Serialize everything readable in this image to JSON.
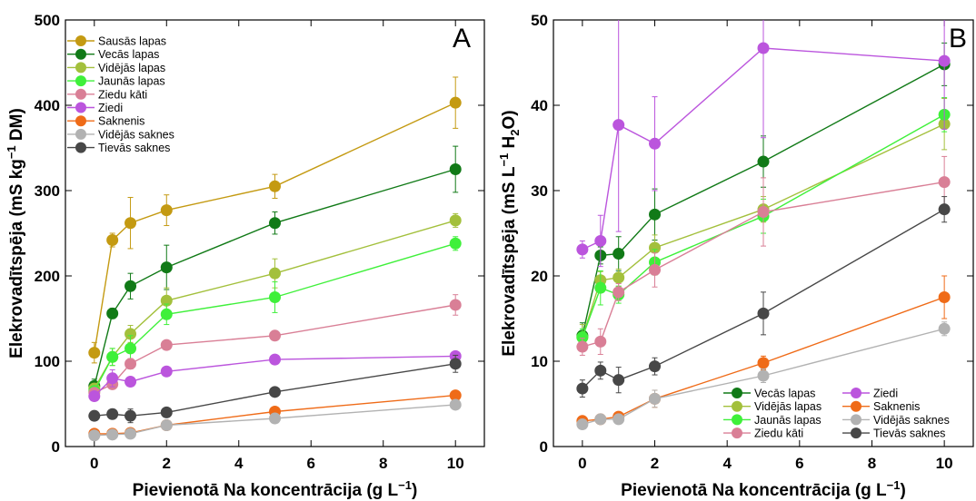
{
  "chart_data": [
    {
      "panel": "A",
      "type": "line",
      "xlabel": "Pievienotā Na koncentrācija (g L",
      "xlabel_sup": "−1",
      "xlabel_end": ")",
      "ylabel_pre": "Elekrovadītspēja (mS kg",
      "ylabel_sup": "−1",
      "ylabel_post": " DM)",
      "xlim": [
        -0.8,
        10.8
      ],
      "ylim": [
        0,
        500
      ],
      "xticks": [
        0,
        2,
        4,
        6,
        8,
        10
      ],
      "yticks": [
        0,
        100,
        200,
        300,
        400,
        500
      ],
      "legend_placement": "top-left",
      "series": [
        {
          "name": "Sausās lapas",
          "color": "#c49a12",
          "x": [
            0,
            0.5,
            1,
            2,
            5,
            10
          ],
          "y": [
            110,
            242,
            262,
            277,
            305,
            403
          ],
          "err": [
            12,
            8,
            30,
            18,
            14,
            30
          ]
        },
        {
          "name": "Vecās lapas",
          "color": "#117a17",
          "x": [
            0,
            0.5,
            1,
            2,
            5,
            10
          ],
          "y": [
            71,
            156,
            188,
            210,
            262,
            325
          ],
          "err": [
            8,
            6,
            15,
            26,
            13,
            27
          ]
        },
        {
          "name": "Vidējās lapas",
          "color": "#a3c03c",
          "x": [
            0,
            0.5,
            1,
            2,
            5,
            10
          ],
          "y": [
            68,
            105,
            132,
            171,
            203,
            265
          ],
          "err": [
            6,
            10,
            10,
            15,
            17,
            8
          ]
        },
        {
          "name": "Jaunās lapas",
          "color": "#3ff03a",
          "x": [
            0,
            0.5,
            1,
            2,
            5,
            10
          ],
          "y": [
            65,
            105,
            115,
            155,
            175,
            238
          ],
          "err": [
            6,
            10,
            15,
            12,
            18,
            8
          ]
        },
        {
          "name": "Ziedu kāti",
          "color": "#d97f96",
          "x": [
            0,
            0.5,
            1,
            2,
            5,
            10
          ],
          "y": [
            63,
            73,
            97,
            119,
            130,
            166
          ],
          "err": [
            5,
            5,
            6,
            5,
            5,
            12
          ]
        },
        {
          "name": "Ziedi",
          "color": "#bb55dd",
          "x": [
            0,
            0.5,
            1,
            2,
            5,
            10
          ],
          "y": [
            59,
            80,
            76,
            88,
            102,
            106
          ],
          "err": [
            5,
            10,
            5,
            5,
            5,
            5
          ]
        },
        {
          "name": "Saknenis",
          "color": "#ef6b18",
          "x": [
            0,
            0.5,
            1,
            2,
            5,
            10
          ],
          "y": [
            15,
            15,
            16,
            25,
            41,
            60
          ],
          "err": [
            2,
            2,
            2,
            3,
            3,
            3
          ]
        },
        {
          "name": "Vidējās saknes",
          "color": "#b2b2b2",
          "x": [
            0,
            0.5,
            1,
            2,
            5,
            10
          ],
          "y": [
            13,
            14,
            15,
            25,
            33,
            49
          ],
          "err": [
            2,
            2,
            2,
            3,
            3,
            4
          ]
        },
        {
          "name": "Tievās saknes",
          "color": "#474747",
          "x": [
            0,
            0.5,
            1,
            2,
            5,
            10
          ],
          "y": [
            36,
            38,
            36,
            40,
            64,
            97
          ],
          "err": [
            5,
            5,
            8,
            5,
            5,
            10
          ]
        }
      ]
    },
    {
      "panel": "B",
      "type": "line",
      "xlabel": "Pievienotā Na koncentrācija (g L",
      "xlabel_sup": "−1",
      "xlabel_end": ")",
      "ylabel_pre": "Elekrovadītspēja (mS L",
      "ylabel_sup": "−1",
      "ylabel_post": " H",
      "ylabel_sub": "2",
      "ylabel_end": "O)",
      "xlim": [
        -0.8,
        10.8
      ],
      "ylim": [
        0,
        50
      ],
      "xticks": [
        0,
        2,
        4,
        6,
        8,
        10
      ],
      "yticks": [
        0,
        10,
        20,
        30,
        40,
        50
      ],
      "legend_placement": "bottom-right",
      "series": [
        {
          "name": "Vecās lapas",
          "color": "#117a17",
          "x": [
            0,
            0.5,
            1,
            2,
            5,
            10
          ],
          "y": [
            13.0,
            22.4,
            22.6,
            27.2,
            33.4,
            44.8
          ],
          "err": [
            1.5,
            1.0,
            2.0,
            3.0,
            3.0,
            2.5
          ]
        },
        {
          "name": "Vidējās lapas",
          "color": "#a3c03c",
          "x": [
            0,
            0.5,
            1,
            2,
            5,
            10
          ],
          "y": [
            12.8,
            19.5,
            19.8,
            23.3,
            27.8,
            37.8
          ],
          "err": [
            1.5,
            1.0,
            1.0,
            1.5,
            1.5,
            3.0
          ]
        },
        {
          "name": "Jaunās lapas",
          "color": "#3ff03a",
          "x": [
            0,
            0.5,
            1,
            2,
            5,
            10
          ],
          "y": [
            12.8,
            18.6,
            17.8,
            21.6,
            27.0,
            38.9
          ],
          "err": [
            1.0,
            2.0,
            1.0,
            1.5,
            2.0,
            2.0
          ]
        },
        {
          "name": "Ziedu kāti",
          "color": "#d97f96",
          "x": [
            0,
            0.5,
            1,
            2,
            5,
            10
          ],
          "y": [
            11.7,
            12.3,
            18.1,
            20.7,
            27.5,
            31.0
          ],
          "err": [
            1.0,
            1.5,
            1.0,
            2.0,
            4.0,
            3.0
          ]
        },
        {
          "name": "Ziedi",
          "color": "#bb55dd",
          "x": [
            0,
            0.5,
            1,
            2,
            5,
            10
          ],
          "y": [
            23.1,
            24.1,
            37.7,
            35.5,
            46.7,
            45.2
          ],
          "err": [
            1.0,
            3.0,
            12.5,
            5.5,
            10.5,
            8.0
          ]
        },
        {
          "name": "Saknenis",
          "color": "#ef6b18",
          "x": [
            0,
            0.5,
            1,
            2,
            5,
            10
          ],
          "y": [
            3.0,
            3.2,
            3.5,
            5.6,
            9.8,
            17.5
          ],
          "err": [
            0.3,
            0.3,
            0.3,
            1.0,
            0.8,
            2.5
          ]
        },
        {
          "name": "Vidējās saknes",
          "color": "#b2b2b2",
          "x": [
            0,
            0.5,
            1,
            2,
            5,
            10
          ],
          "y": [
            2.6,
            3.2,
            3.2,
            5.6,
            8.3,
            13.8
          ],
          "err": [
            0.3,
            0.3,
            0.3,
            1.0,
            0.8,
            0.8
          ]
        },
        {
          "name": "Tievās saknes",
          "color": "#474747",
          "x": [
            0,
            0.5,
            1,
            2,
            5,
            10
          ],
          "y": [
            6.8,
            8.9,
            7.8,
            9.4,
            15.6,
            27.8
          ],
          "err": [
            1.0,
            1.0,
            1.5,
            1.0,
            2.5,
            1.5
          ]
        }
      ]
    }
  ]
}
